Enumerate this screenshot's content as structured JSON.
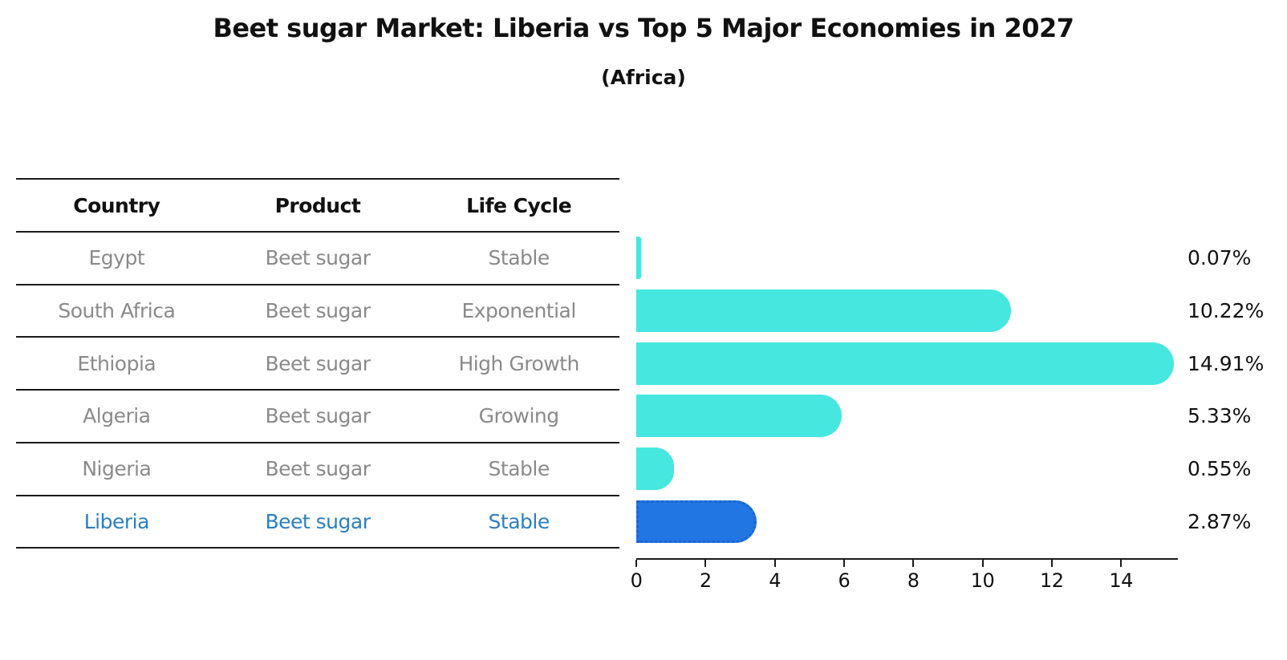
{
  "title": "Beet sugar Market: Liberia vs Top 5 Major Economies in 2027",
  "subtitle": "(Africa)",
  "table": {
    "headers": [
      "Country",
      "Product",
      "Life Cycle"
    ],
    "rows": [
      {
        "country": "Egypt",
        "product": "Beet sugar",
        "life_cycle": "Stable"
      },
      {
        "country": "South Africa",
        "product": "Beet sugar",
        "life_cycle": "Exponential"
      },
      {
        "country": "Ethiopia",
        "product": "Beet sugar",
        "life_cycle": "High Growth"
      },
      {
        "country": "Algeria",
        "product": "Beet sugar",
        "life_cycle": "Growing"
      },
      {
        "country": "Nigeria",
        "product": "Beet sugar",
        "life_cycle": "Stable"
      },
      {
        "country": "Liberia",
        "product": "Beet sugar",
        "life_cycle": "Stable"
      }
    ],
    "highlight_row": "Liberia"
  },
  "chart_data": {
    "type": "bar",
    "orientation": "horizontal",
    "categories": [
      "Egypt",
      "South Africa",
      "Ethiopia",
      "Algeria",
      "Nigeria",
      "Liberia"
    ],
    "values": [
      0.07,
      10.22,
      14.91,
      5.33,
      0.55,
      2.87
    ],
    "value_labels": [
      "0.07%",
      "10.22%",
      "14.91%",
      "5.33%",
      "0.55%",
      "2.87%"
    ],
    "x_ticks": [
      0,
      2,
      4,
      6,
      8,
      10,
      12,
      14
    ],
    "xlim": [
      0,
      15.6
    ],
    "grid": false,
    "legend": null,
    "highlight_category": "Liberia"
  },
  "colors": {
    "bar_cyan": "#45E7DF",
    "bar_blue": "#2176E3",
    "bar_blue_border": "#1C64D0",
    "highlight_text": "#2E7EBD",
    "table_text": "#8A8A8A",
    "heading_text": "#111111",
    "line": "#1A1A1A"
  }
}
